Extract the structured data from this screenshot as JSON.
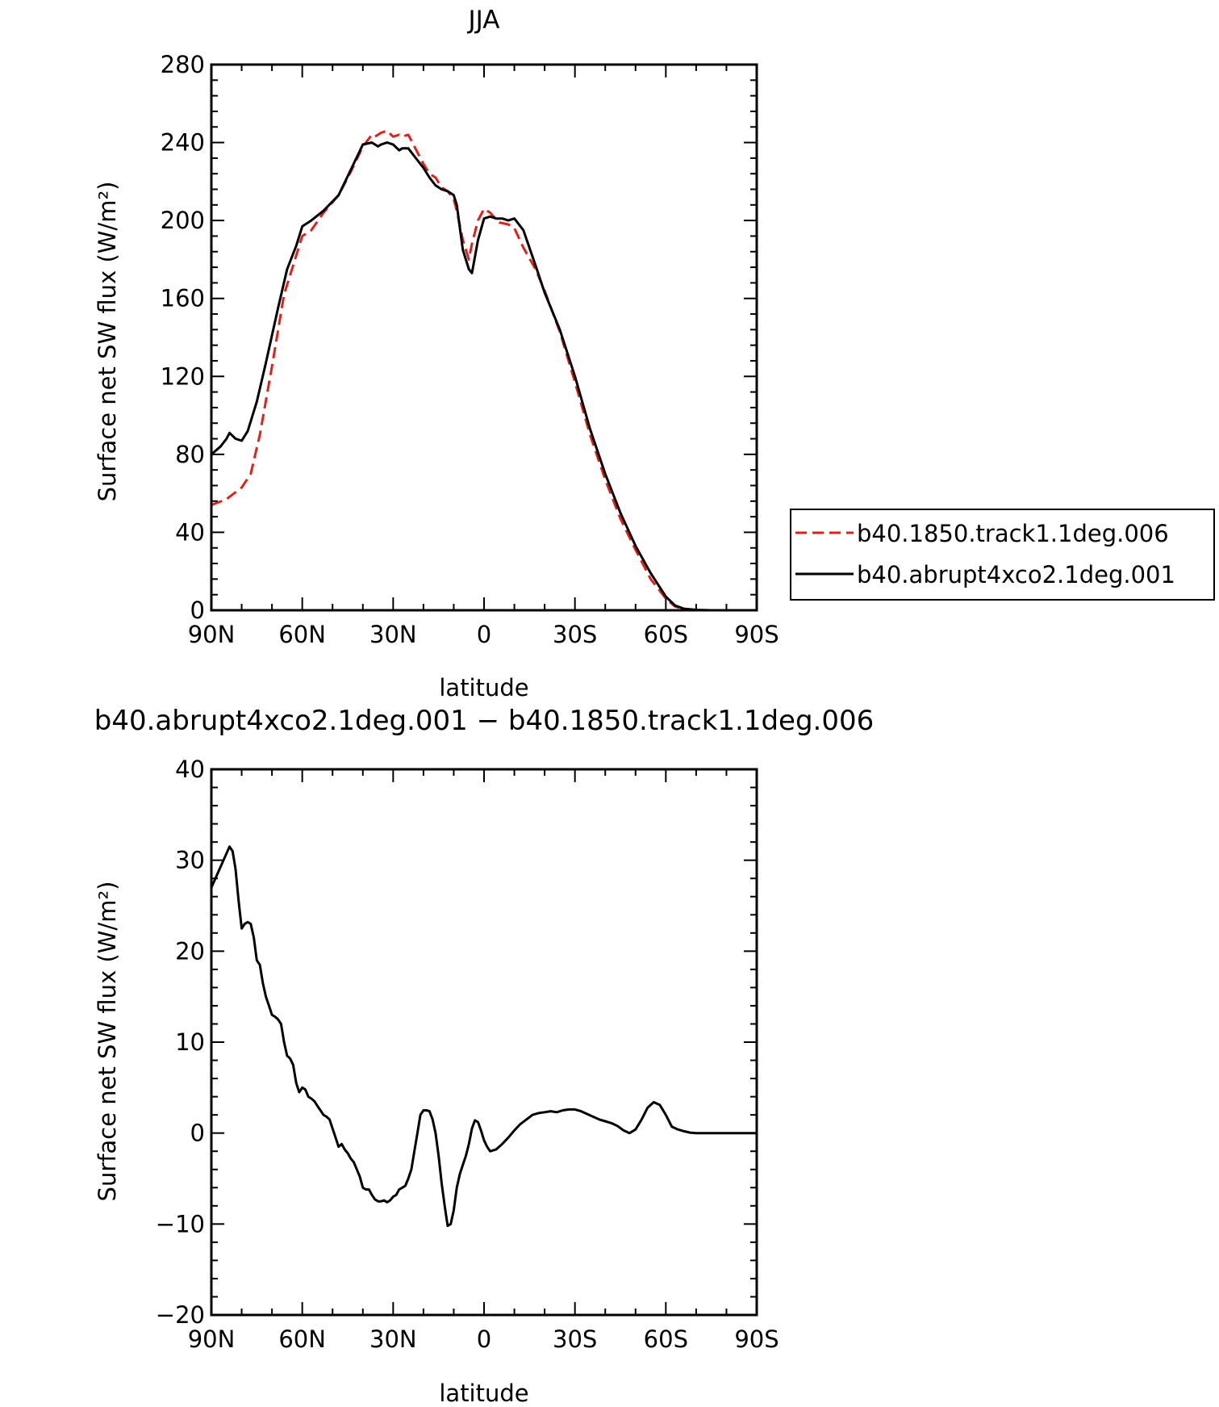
{
  "chart_data": [
    {
      "type": "line",
      "title": "JJA",
      "xlabel": "latitude",
      "ylabel": "Surface net SW flux (W/m²)",
      "x_direction": "90N to 90S (north to south)",
      "xlim": [
        90,
        -90
      ],
      "ylim": [
        0,
        280
      ],
      "x_ticks": [
        90,
        60,
        30,
        0,
        -30,
        -60,
        -90
      ],
      "x_tick_labels": [
        "90N",
        "60N",
        "30N",
        "0",
        "30S",
        "60S",
        "90S"
      ],
      "y_ticks": [
        0,
        40,
        80,
        120,
        160,
        200,
        240,
        280
      ],
      "y_tick_labels": [
        "0",
        "40",
        "80",
        "120",
        "160",
        "200",
        "240",
        "280"
      ],
      "grid": false,
      "legend_position": "right, outside plot",
      "series": [
        {
          "name": "b40.1850.track1.1deg.006",
          "color": "#e0201a",
          "style": "dashed",
          "x": [
            90,
            85,
            80,
            77,
            74,
            70,
            66,
            62,
            60,
            57,
            53,
            48,
            44,
            40,
            37,
            36,
            34,
            32,
            30,
            28,
            27,
            25,
            23,
            20,
            18,
            16,
            14,
            12,
            10,
            9,
            7,
            5,
            4,
            2,
            0,
            -2,
            -5,
            -8,
            -10,
            -13,
            -17,
            -20,
            -25,
            -30,
            -35,
            -40,
            -45,
            -50,
            -55,
            -60,
            -63,
            -66,
            -70,
            -75,
            -80,
            -90
          ],
          "y": [
            54,
            57,
            63,
            70,
            90,
            125,
            162,
            182,
            192,
            195,
            204,
            213,
            225,
            238,
            244,
            243,
            245,
            246,
            243,
            244,
            243,
            244,
            238,
            229,
            224,
            222,
            217,
            215,
            211,
            205,
            190,
            180,
            188,
            200,
            206,
            204,
            199,
            198,
            196,
            186,
            175,
            164,
            143,
            117,
            90,
            67,
            47,
            31,
            16,
            6,
            2,
            0.5,
            0,
            0,
            0,
            0
          ]
        },
        {
          "name": "b40.abrupt4xco2.1deg.001",
          "color": "#000000",
          "style": "solid",
          "x": [
            90,
            87,
            85,
            84,
            82,
            80,
            78,
            75,
            72,
            68,
            65,
            62,
            60,
            57,
            53,
            48,
            44,
            40,
            37,
            35,
            34,
            32,
            30,
            28,
            27,
            25,
            23,
            20,
            18,
            16,
            14,
            12,
            10,
            9,
            7,
            5,
            4,
            2,
            0,
            -2,
            -4,
            -6,
            -8,
            -10,
            -13,
            -17,
            -20,
            -25,
            -30,
            -35,
            -40,
            -45,
            -50,
            -55,
            -60,
            -63,
            -66,
            -70,
            -75,
            -80,
            -90
          ],
          "y": [
            80,
            84,
            88,
            91,
            88,
            87,
            92,
            107,
            127,
            155,
            175,
            187,
            197,
            200,
            205,
            213,
            226,
            239,
            240,
            238,
            239,
            240,
            239,
            236,
            237,
            237,
            233,
            227,
            222,
            218,
            216,
            215,
            213,
            208,
            185,
            175,
            173,
            190,
            201,
            202,
            201,
            201,
            200,
            201,
            195,
            177,
            163,
            144,
            120,
            93,
            70,
            50,
            33,
            19,
            7,
            2.5,
            0.8,
            0.2,
            0,
            0,
            0
          ]
        }
      ]
    },
    {
      "type": "line",
      "title": "b40.abrupt4xco2.1deg.001 − b40.1850.track1.1deg.006",
      "xlabel": "latitude",
      "ylabel": "Surface net SW flux (W/m²)",
      "xlim": [
        90,
        -90
      ],
      "ylim": [
        -20,
        40
      ],
      "x_ticks": [
        90,
        60,
        30,
        0,
        -30,
        -60,
        -90
      ],
      "x_tick_labels": [
        "90N",
        "60N",
        "30N",
        "0",
        "30S",
        "60S",
        "90S"
      ],
      "y_ticks": [
        -20,
        -10,
        0,
        10,
        20,
        30,
        40
      ],
      "y_tick_labels": [
        "−20",
        "−10",
        "0",
        "10",
        "20",
        "30",
        "40"
      ],
      "grid": false,
      "series": [
        {
          "color": "#000000",
          "style": "solid",
          "x": [
            90,
            88,
            86,
            84,
            83,
            82,
            81,
            80,
            79,
            78,
            77,
            76,
            75,
            74,
            73,
            72,
            71,
            70,
            69,
            68,
            67,
            66,
            65,
            64,
            63,
            62,
            61,
            60,
            59,
            58,
            57,
            56,
            55,
            54,
            53,
            52,
            51,
            50,
            49,
            48,
            47,
            46,
            45,
            44,
            43,
            42,
            41,
            40,
            39,
            38,
            37,
            36,
            35,
            34,
            33,
            32,
            31,
            30,
            29,
            28,
            27,
            26,
            25,
            24,
            23,
            22,
            21,
            20,
            19,
            18,
            17,
            16,
            15,
            14,
            13,
            12,
            11,
            10,
            9,
            8,
            7,
            6,
            5,
            4,
            3,
            2,
            1,
            0,
            -1,
            -2,
            -4,
            -6,
            -8,
            -10,
            -12,
            -14,
            -16,
            -18,
            -20,
            -22,
            -24,
            -26,
            -28,
            -30,
            -32,
            -34,
            -36,
            -38,
            -40,
            -42,
            -44,
            -46,
            -48,
            -50,
            -52,
            -54,
            -56,
            -58,
            -60,
            -62,
            -64,
            -66,
            -68,
            -70,
            -72,
            -75,
            -80,
            -85,
            -90
          ],
          "y": [
            27.0,
            28.5,
            30.0,
            31.5,
            31.0,
            29.0,
            25.5,
            22.5,
            23.0,
            23.2,
            23.0,
            21.5,
            19.0,
            18.5,
            16.5,
            15.0,
            14.0,
            13.0,
            12.8,
            12.5,
            12.0,
            10.0,
            8.5,
            8.2,
            7.5,
            5.5,
            4.5,
            5.0,
            4.8,
            4.0,
            3.8,
            3.5,
            3.0,
            2.5,
            2.0,
            1.8,
            1.5,
            0.5,
            -0.5,
            -1.5,
            -1.2,
            -1.8,
            -2.2,
            -2.8,
            -3.2,
            -4.0,
            -4.8,
            -6.0,
            -6.2,
            -6.2,
            -6.8,
            -7.3,
            -7.5,
            -7.5,
            -7.4,
            -7.6,
            -7.4,
            -7.0,
            -6.8,
            -6.2,
            -6.0,
            -5.8,
            -5.0,
            -4.0,
            -2.0,
            0.0,
            2.0,
            2.5,
            2.5,
            2.4,
            1.5,
            0.0,
            -2.5,
            -5.5,
            -8.0,
            -10.2,
            -10.0,
            -8.5,
            -6.0,
            -4.5,
            -3.5,
            -2.5,
            -1.2,
            0.5,
            1.4,
            1.2,
            0.3,
            -0.8,
            -1.5,
            -2.0,
            -1.8,
            -1.2,
            -0.5,
            0.3,
            1.0,
            1.5,
            2.0,
            2.2,
            2.3,
            2.4,
            2.3,
            2.5,
            2.6,
            2.6,
            2.4,
            2.1,
            1.8,
            1.5,
            1.3,
            1.1,
            0.8,
            0.3,
            0.0,
            0.4,
            1.5,
            2.8,
            3.4,
            3.1,
            2.0,
            0.7,
            0.4,
            0.2,
            0.05,
            0.0,
            0.0,
            0.0,
            0.0,
            0.0,
            0.0
          ]
        }
      ]
    }
  ],
  "legend": [
    {
      "label": "b40.1850.track1.1deg.006",
      "color": "#e0201a",
      "style": "dashed"
    },
    {
      "label": "b40.abrupt4xco2.1deg.001",
      "color": "#000000",
      "style": "solid"
    }
  ]
}
